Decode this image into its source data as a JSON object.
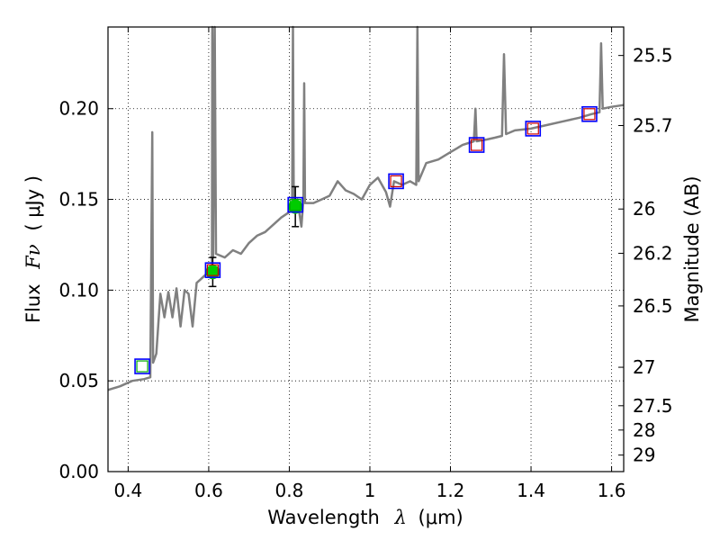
{
  "chart_data": {
    "type": "line",
    "xlabel_text": "Wavelength",
    "xlabel_symbol": "λ",
    "xlabel_unit": "(μm)",
    "ylabel_text": "Flux",
    "ylabel_symbol": "Fν",
    "ylabel_unit": "( μJy )",
    "y2label": "Magnitude (AB)",
    "xlim": [
      0.35,
      1.63
    ],
    "ylim": [
      0.0,
      0.245
    ],
    "grid": true,
    "x_ticks": [
      0.4,
      0.6,
      0.8,
      1.0,
      1.2,
      1.4,
      1.6
    ],
    "x_tick_labels": [
      "0.4",
      "0.6",
      "0.8",
      "1",
      "1.2",
      "1.4",
      "1.6"
    ],
    "y_ticks": [
      0.0,
      0.05,
      0.1,
      0.15,
      0.2
    ],
    "y_tick_labels": [
      "0.00",
      "0.05",
      "0.10",
      "0.15",
      "0.20"
    ],
    "mag_ticks": [
      {
        "label": "25.5",
        "flux": 0.2293
      },
      {
        "label": "25.7",
        "flux": 0.1907
      },
      {
        "label": "26",
        "flux": 0.1447
      },
      {
        "label": "26.2",
        "flux": 0.1203
      },
      {
        "label": "26.5",
        "flux": 0.0913
      },
      {
        "label": "27",
        "flux": 0.0575
      },
      {
        "label": "27.5",
        "flux": 0.0363
      },
      {
        "label": "28",
        "flux": 0.0229
      },
      {
        "label": "29",
        "flux": 0.0091
      }
    ],
    "model_spectrum": {
      "name": "model SED",
      "color": "#808080",
      "points": [
        [
          0.35,
          0.045
        ],
        [
          0.38,
          0.047
        ],
        [
          0.41,
          0.05
        ],
        [
          0.44,
          0.051
        ],
        [
          0.455,
          0.052
        ],
        [
          0.46,
          0.187
        ],
        [
          0.462,
          0.06
        ],
        [
          0.47,
          0.065
        ],
        [
          0.48,
          0.098
        ],
        [
          0.49,
          0.085
        ],
        [
          0.5,
          0.099
        ],
        [
          0.51,
          0.085
        ],
        [
          0.52,
          0.101
        ],
        [
          0.53,
          0.08
        ],
        [
          0.54,
          0.1
        ],
        [
          0.55,
          0.098
        ],
        [
          0.56,
          0.08
        ],
        [
          0.57,
          0.104
        ],
        [
          0.58,
          0.106
        ],
        [
          0.59,
          0.108
        ],
        [
          0.6,
          0.11
        ],
        [
          0.608,
          0.112
        ],
        [
          0.609,
          0.245
        ],
        [
          0.611,
          0.118
        ],
        [
          0.615,
          0.245
        ],
        [
          0.618,
          0.12
        ],
        [
          0.64,
          0.118
        ],
        [
          0.66,
          0.122
        ],
        [
          0.68,
          0.12
        ],
        [
          0.7,
          0.126
        ],
        [
          0.72,
          0.13
        ],
        [
          0.74,
          0.132
        ],
        [
          0.76,
          0.136
        ],
        [
          0.78,
          0.14
        ],
        [
          0.8,
          0.143
        ],
        [
          0.807,
          0.146
        ],
        [
          0.809,
          0.245
        ],
        [
          0.811,
          0.148
        ],
        [
          0.82,
          0.15
        ],
        [
          0.83,
          0.135
        ],
        [
          0.835,
          0.15
        ],
        [
          0.837,
          0.214
        ],
        [
          0.839,
          0.148
        ],
        [
          0.86,
          0.148
        ],
        [
          0.88,
          0.15
        ],
        [
          0.9,
          0.152
        ],
        [
          0.92,
          0.16
        ],
        [
          0.94,
          0.155
        ],
        [
          0.96,
          0.153
        ],
        [
          0.98,
          0.15
        ],
        [
          1.0,
          0.158
        ],
        [
          1.02,
          0.162
        ],
        [
          1.04,
          0.154
        ],
        [
          1.05,
          0.146
        ],
        [
          1.06,
          0.16
        ],
        [
          1.08,
          0.158
        ],
        [
          1.1,
          0.16
        ],
        [
          1.115,
          0.158
        ],
        [
          1.118,
          0.245
        ],
        [
          1.121,
          0.16
        ],
        [
          1.14,
          0.17
        ],
        [
          1.17,
          0.172
        ],
        [
          1.2,
          0.176
        ],
        [
          1.23,
          0.18
        ],
        [
          1.258,
          0.182
        ],
        [
          1.262,
          0.2
        ],
        [
          1.265,
          0.182
        ],
        [
          1.29,
          0.183
        ],
        [
          1.31,
          0.184
        ],
        [
          1.328,
          0.185
        ],
        [
          1.333,
          0.23
        ],
        [
          1.338,
          0.186
        ],
        [
          1.36,
          0.188
        ],
        [
          1.4,
          0.189
        ],
        [
          1.44,
          0.191
        ],
        [
          1.48,
          0.193
        ],
        [
          1.52,
          0.195
        ],
        [
          1.55,
          0.197
        ],
        [
          1.57,
          0.198
        ],
        [
          1.574,
          0.236
        ],
        [
          1.578,
          0.2
        ],
        [
          1.6,
          0.201
        ],
        [
          1.63,
          0.202
        ]
      ]
    },
    "series": [
      {
        "name": "green circles",
        "color": "#00cc00",
        "x": [
          0.61,
          0.815
        ],
        "y": [
          0.11,
          0.146
        ],
        "yerr": [
          0.008,
          0.011
        ]
      },
      {
        "name": "blue squares",
        "color": "#0000ff",
        "x": [
          0.435,
          0.61,
          0.815,
          1.065,
          1.265,
          1.405,
          1.545
        ],
        "y": [
          0.058,
          0.111,
          0.147,
          0.16,
          0.18,
          0.189,
          0.197
        ]
      },
      {
        "name": "inner squares",
        "colors": [
          "#00aa00",
          "#cc0000",
          "#00aa00",
          "#cc0000",
          "#cc0000",
          "#cc0000",
          "#cc0000"
        ],
        "x": [
          0.435,
          0.61,
          0.815,
          1.065,
          1.265,
          1.405,
          1.545
        ],
        "y": [
          0.058,
          0.111,
          0.147,
          0.16,
          0.18,
          0.189,
          0.197
        ]
      }
    ]
  }
}
